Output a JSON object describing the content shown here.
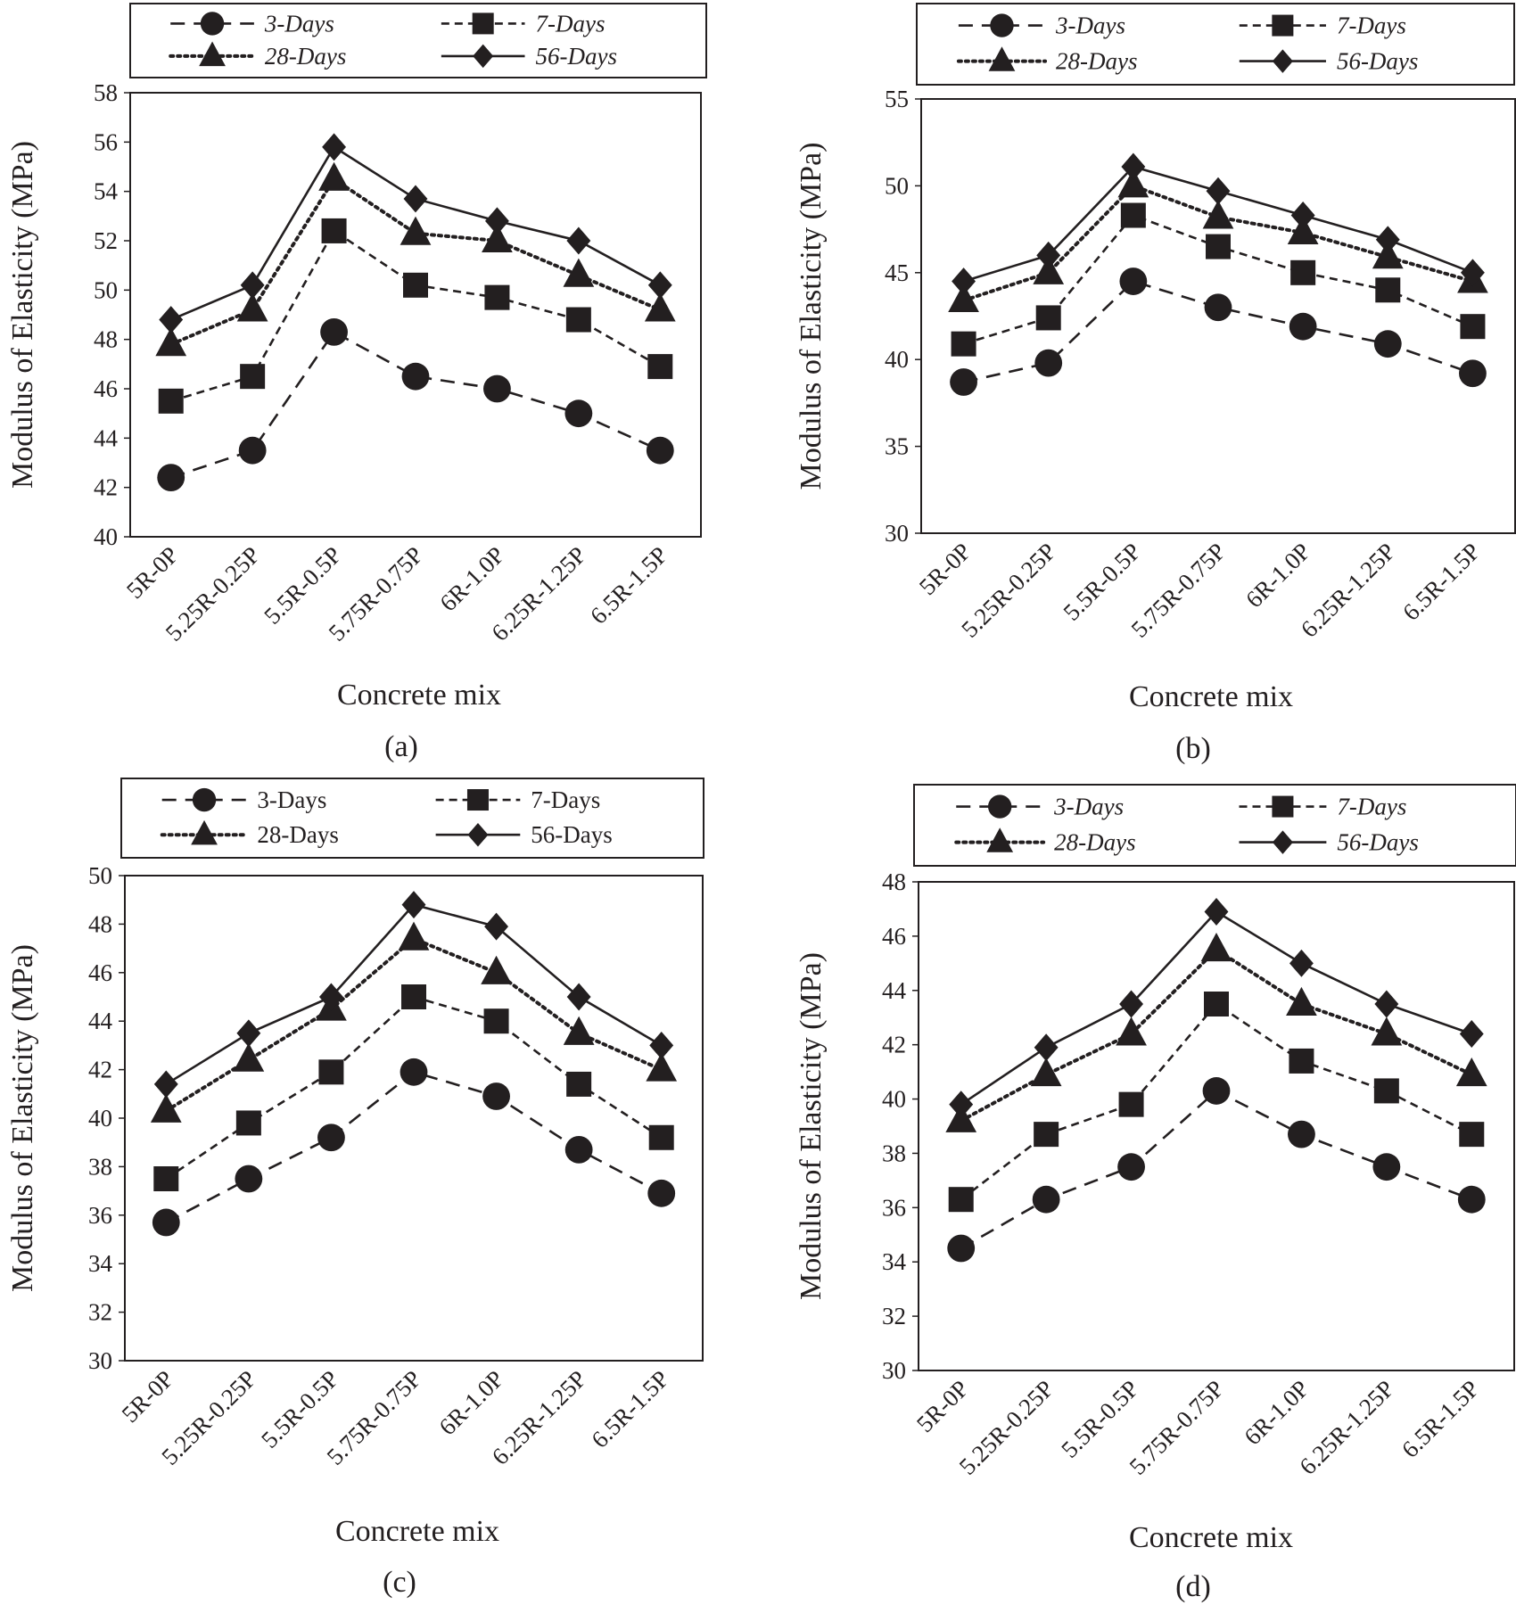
{
  "chart_data": [
    {
      "type": "line",
      "caption": "(a)",
      "xlabel": "Concrete mix",
      "ylabel": "Modulus of Elasticity (MPa)",
      "ylim": [
        40,
        58
      ],
      "yticks": [
        "40",
        "42",
        "44",
        "46",
        "48",
        "50",
        "52",
        "54",
        "56",
        "58"
      ],
      "categories": [
        "5R-0P",
        "5.25R-0.25P",
        "5.5R-0.5P",
        "5.75R-0.75P",
        "6R-1.0P",
        "6.25R-1.25P",
        "6.5R-1.5P"
      ],
      "legend_italic": true,
      "legend_position": "top",
      "series": [
        {
          "name": "3-Days",
          "marker": "circle",
          "line": "long-dash",
          "values": [
            42.4,
            43.5,
            48.3,
            46.5,
            46.0,
            45.0,
            43.5
          ]
        },
        {
          "name": "7-Days",
          "marker": "square",
          "line": "dash",
          "values": [
            45.5,
            46.5,
            52.4,
            50.2,
            49.7,
            48.8,
            46.9
          ]
        },
        {
          "name": "28-Days",
          "marker": "triangle",
          "line": "dotted",
          "values": [
            47.8,
            49.2,
            54.5,
            52.3,
            52.0,
            50.6,
            49.2
          ]
        },
        {
          "name": "56-Days",
          "marker": "diamond",
          "line": "solid",
          "values": [
            48.8,
            50.2,
            55.8,
            53.7,
            52.8,
            52.0,
            50.2
          ]
        }
      ]
    },
    {
      "type": "line",
      "caption": "(b)",
      "xlabel": "Concrete mix",
      "ylabel": "Modulus of Elasticity (MPa)",
      "ylim": [
        30,
        55
      ],
      "yticks": [
        "30",
        "35",
        "40",
        "45",
        "50",
        "55"
      ],
      "categories": [
        "5R-0P",
        "5.25R-0.25P",
        "5.5R-0.5P",
        "5.75R-0.75P",
        "6R-1.0P",
        "6.25R-1.25P",
        "6.5R-1.5P"
      ],
      "legend_italic": true,
      "legend_position": "top",
      "series": [
        {
          "name": "3-Days",
          "marker": "circle",
          "line": "long-dash",
          "values": [
            38.7,
            39.8,
            44.5,
            43.0,
            41.9,
            40.9,
            39.2
          ]
        },
        {
          "name": "7-Days",
          "marker": "square",
          "line": "dash",
          "values": [
            40.9,
            42.4,
            48.3,
            46.5,
            45.0,
            44.0,
            41.9
          ]
        },
        {
          "name": "28-Days",
          "marker": "triangle",
          "line": "dotted",
          "values": [
            43.4,
            45.0,
            50.0,
            48.2,
            47.3,
            45.9,
            44.5
          ]
        },
        {
          "name": "56-Days",
          "marker": "diamond",
          "line": "solid",
          "values": [
            44.5,
            46.0,
            51.1,
            49.7,
            48.3,
            46.9,
            45.0
          ]
        }
      ]
    },
    {
      "type": "line",
      "caption": "(c)",
      "xlabel": "Concrete mix",
      "ylabel": "Modulus of Elasticity (MPa)",
      "ylim": [
        30,
        50
      ],
      "yticks": [
        "30",
        "32",
        "34",
        "36",
        "38",
        "40",
        "42",
        "44",
        "46",
        "48",
        "50"
      ],
      "categories": [
        "5R-0P",
        "5.25R-0.25P",
        "5.5R-0.5P",
        "5.75R-0.75P",
        "6R-1.0P",
        "6.25R-1.25P",
        "6.5R-1.5P"
      ],
      "legend_italic": false,
      "legend_position": "top",
      "series": [
        {
          "name": "3-Days",
          "marker": "circle",
          "line": "long-dash",
          "values": [
            35.7,
            37.5,
            39.2,
            41.9,
            40.9,
            38.7,
            36.9
          ]
        },
        {
          "name": "7-Days",
          "marker": "square",
          "line": "dash",
          "values": [
            37.5,
            39.8,
            41.9,
            45.0,
            44.0,
            41.4,
            39.2
          ]
        },
        {
          "name": "28-Days",
          "marker": "triangle",
          "line": "dotted",
          "values": [
            40.3,
            42.4,
            44.5,
            47.4,
            46.0,
            43.5,
            42.0
          ]
        },
        {
          "name": "56-Days",
          "marker": "diamond",
          "line": "solid",
          "values": [
            41.4,
            43.5,
            45.0,
            48.8,
            47.9,
            45.0,
            43.0
          ]
        }
      ]
    },
    {
      "type": "line",
      "caption": "(d)",
      "xlabel": "Concrete mix",
      "ylabel": "Modulus of Elasticity (MPa)",
      "ylim": [
        30,
        48
      ],
      "yticks": [
        "30",
        "32",
        "34",
        "36",
        "38",
        "40",
        "42",
        "44",
        "46",
        "48"
      ],
      "categories": [
        "5R-0P",
        "5.25R-0.25P",
        "5.5R-0.5P",
        "5.75R-0.75P",
        "6R-1.0P",
        "6.25R-1.25P",
        "6.5R-1.5P"
      ],
      "legend_italic": true,
      "legend_position": "top",
      "series": [
        {
          "name": "3-Days",
          "marker": "circle",
          "line": "long-dash",
          "values": [
            34.5,
            36.3,
            37.5,
            40.3,
            38.7,
            37.5,
            36.3
          ]
        },
        {
          "name": "7-Days",
          "marker": "square",
          "line": "dash",
          "values": [
            36.3,
            38.7,
            39.8,
            43.5,
            41.4,
            40.3,
            38.7
          ]
        },
        {
          "name": "28-Days",
          "marker": "triangle",
          "line": "dotted",
          "values": [
            39.2,
            40.9,
            42.4,
            45.5,
            43.5,
            42.4,
            40.9
          ]
        },
        {
          "name": "56-Days",
          "marker": "diamond",
          "line": "solid",
          "values": [
            39.8,
            41.9,
            43.5,
            46.9,
            45.0,
            43.5,
            42.4
          ]
        }
      ]
    }
  ],
  "colors": {
    "ink": "#231f20",
    "background": "#ffffff"
  }
}
